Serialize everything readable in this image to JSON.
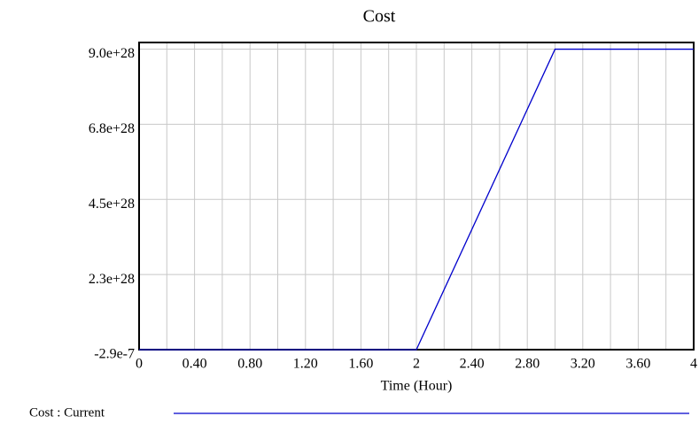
{
  "chart_data": {
    "type": "line",
    "title": "Cost",
    "x_label": "Time (Hour)",
    "x": [
      0,
      2,
      3,
      4
    ],
    "series": [
      {
        "name": "Cost : Current",
        "color": "#0000cc",
        "values": [
          -2.9e-07,
          -2.9e-07,
          9e+28,
          9e+28
        ]
      }
    ],
    "xlim": [
      0,
      4
    ],
    "xticks": [
      0,
      {
        "value": 0.4,
        "label": "0.40"
      },
      {
        "value": 0.8,
        "label": "0.80"
      },
      {
        "value": 1.2,
        "label": "1.20"
      },
      {
        "value": 1.6,
        "label": "1.60"
      },
      2,
      {
        "value": 2.4,
        "label": "2.40"
      },
      {
        "value": 2.8,
        "label": "2.80"
      },
      {
        "value": 3.2,
        "label": "3.20"
      },
      {
        "value": 3.6,
        "label": "3.60"
      },
      4
    ],
    "x_grid_subdivisions": 2,
    "ylim": [
      -2.9e-07,
      9.2e+28
    ],
    "yticks": [
      -2.9e-07,
      {
        "value": 2.25e+28,
        "label": "2.3e+28"
      },
      {
        "value": 4.5e+28,
        "label": "4.5e+28"
      },
      {
        "value": 6.75e+28,
        "label": "6.8e+28"
      },
      {
        "value": 9e+28,
        "label": "9.0e+28"
      }
    ],
    "grid": true
  }
}
